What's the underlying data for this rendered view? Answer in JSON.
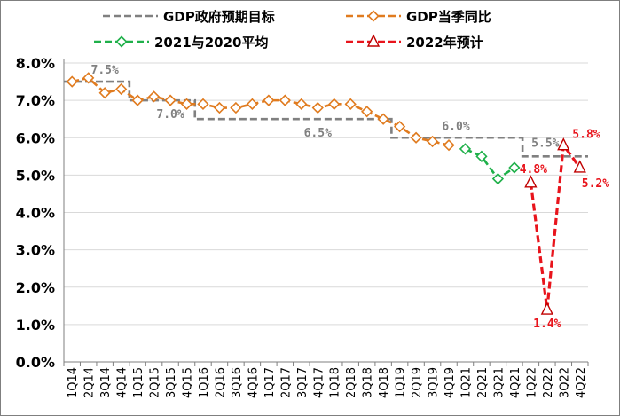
{
  "chart_data": {
    "type": "line",
    "x": [
      "1Q14",
      "2Q14",
      "3Q14",
      "4Q14",
      "1Q15",
      "2Q15",
      "3Q15",
      "4Q15",
      "1Q16",
      "2Q16",
      "3Q16",
      "4Q16",
      "1Q17",
      "2Q17",
      "3Q17",
      "4Q17",
      "1Q18",
      "2Q18",
      "3Q18",
      "4Q18",
      "1Q19",
      "2Q19",
      "3Q19",
      "4Q19",
      "1Q21",
      "2Q21",
      "3Q21",
      "4Q21",
      "1Q22",
      "2Q22",
      "3Q22",
      "4Q22"
    ],
    "ylim": [
      0,
      8
    ],
    "yticks": [
      "0.0%",
      "1.0%",
      "2.0%",
      "3.0%",
      "4.0%",
      "5.0%",
      "6.0%",
      "7.0%",
      "8.0%"
    ],
    "grid": true,
    "legend_position": "top",
    "series": [
      {
        "name": "GDP政府预期目标",
        "style": "dashed-step",
        "color": "#808080",
        "values": [
          7.5,
          7.5,
          7.5,
          7.5,
          7.0,
          7.0,
          7.0,
          7.0,
          6.5,
          6.5,
          6.5,
          6.5,
          6.5,
          6.5,
          6.5,
          6.5,
          6.5,
          6.5,
          6.5,
          6.5,
          6.0,
          6.0,
          6.0,
          6.0,
          6.0,
          6.0,
          6.0,
          6.0,
          5.5,
          5.5,
          5.5,
          5.5
        ]
      },
      {
        "name": "GDP当季同比",
        "style": "dashed-diamond",
        "color": "#e07b1f",
        "values": [
          7.5,
          7.6,
          7.2,
          7.3,
          7.0,
          7.1,
          7.0,
          6.9,
          6.9,
          6.8,
          6.8,
          6.9,
          7.0,
          7.0,
          6.9,
          6.8,
          6.9,
          6.9,
          6.7,
          6.5,
          6.3,
          6.0,
          5.9,
          5.8,
          null,
          null,
          null,
          null,
          null,
          null,
          null,
          null
        ]
      },
      {
        "name": "2021与2020平均",
        "style": "dashed-diamond",
        "color": "#1fb04a",
        "values": [
          null,
          null,
          null,
          null,
          null,
          null,
          null,
          null,
          null,
          null,
          null,
          null,
          null,
          null,
          null,
          null,
          null,
          null,
          null,
          null,
          null,
          null,
          null,
          null,
          5.7,
          5.5,
          4.9,
          5.2,
          null,
          null,
          null,
          null
        ]
      },
      {
        "name": "2022年预计",
        "style": "dashed-triangle",
        "color": "#e8141c",
        "values": [
          null,
          null,
          null,
          null,
          null,
          null,
          null,
          null,
          null,
          null,
          null,
          null,
          null,
          null,
          null,
          null,
          null,
          null,
          null,
          null,
          null,
          null,
          null,
          null,
          null,
          null,
          null,
          null,
          4.8,
          1.4,
          5.8,
          5.2
        ]
      }
    ],
    "annotations": [
      {
        "text": "7.5%",
        "x": "3Q14",
        "y": 7.5,
        "color": "#808080",
        "pos": "above"
      },
      {
        "text": "7.0%",
        "x": "3Q15",
        "y": 7.0,
        "color": "#808080",
        "pos": "below"
      },
      {
        "text": "6.5%",
        "x": "4Q17",
        "y": 6.5,
        "color": "#808080",
        "pos": "below"
      },
      {
        "text": "6.0%",
        "x": "4Q19",
        "y": 6.0,
        "color": "#808080",
        "pos": "above"
      },
      {
        "text": "5.5%",
        "x": "2Q22",
        "y": 5.5,
        "color": "#808080",
        "pos": "above"
      },
      {
        "text": "4.8%",
        "x": "1Q22",
        "y": 4.8,
        "color": "#e8141c",
        "pos": "above"
      },
      {
        "text": "1.4%",
        "x": "2Q22",
        "y": 1.4,
        "color": "#e8141c",
        "pos": "below"
      },
      {
        "text": "5.8%",
        "x": "3Q22",
        "y": 5.8,
        "color": "#e8141c",
        "pos": "right-above"
      },
      {
        "text": "5.2%",
        "x": "4Q22",
        "y": 5.2,
        "color": "#e8141c",
        "pos": "right-below"
      }
    ]
  }
}
